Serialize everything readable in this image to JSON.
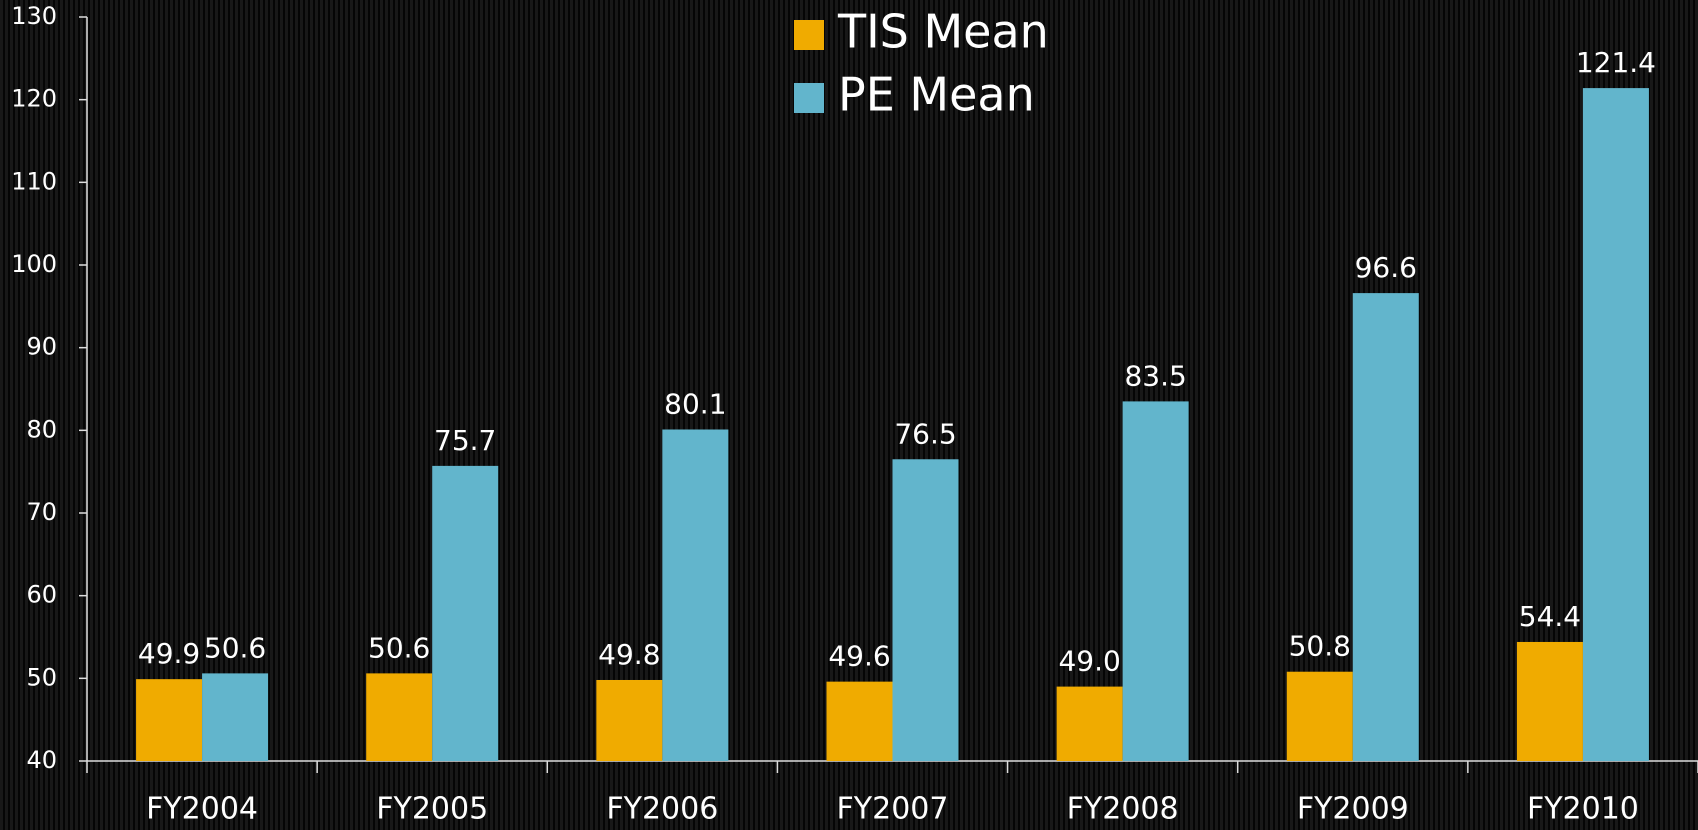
{
  "chart_data": {
    "type": "bar",
    "categories": [
      "FY2004",
      "FY2005",
      "FY2006",
      "FY2007",
      "FY2008",
      "FY2009",
      "FY2010"
    ],
    "series": [
      {
        "name": "TIS Mean",
        "color": "#f0ab00",
        "values": [
          49.9,
          50.6,
          49.8,
          49.6,
          49.0,
          50.8,
          54.4
        ],
        "value_labels": [
          "49.9",
          "50.6",
          "49.8",
          "49.6",
          "49.0",
          "50.8",
          "54.4"
        ]
      },
      {
        "name": "PE Mean",
        "color": "#62b5cc",
        "values": [
          50.6,
          75.7,
          80.1,
          76.5,
          83.5,
          96.6,
          121.4
        ],
        "value_labels": [
          "50.6",
          "75.7",
          "80.1",
          "76.5",
          "83.5",
          "96.6",
          "121.4"
        ]
      }
    ],
    "ylim": [
      40,
      130
    ],
    "yticks": [
      40,
      50,
      60,
      70,
      80,
      90,
      100,
      110,
      120,
      130
    ]
  }
}
